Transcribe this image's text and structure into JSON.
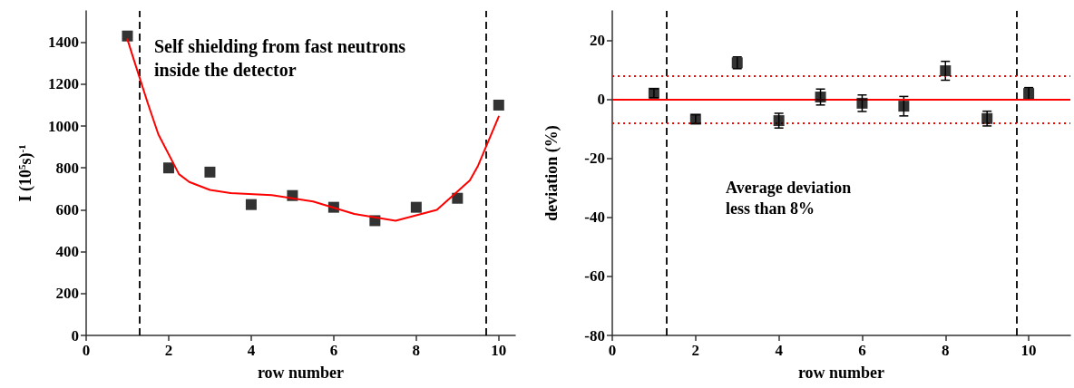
{
  "chart_data": [
    {
      "type": "scatter",
      "xlabel": "row number",
      "ylabel": "I (10$^{5}$s)$^{-1}$",
      "xlim": [
        0,
        10.4
      ],
      "xticks": [
        0,
        2,
        4,
        6,
        8,
        10
      ],
      "ylim": [
        0,
        1550
      ],
      "yticks": [
        0,
        200,
        400,
        600,
        800,
        1000,
        1200,
        1400
      ],
      "x": [
        1,
        2,
        3,
        4,
        5,
        6,
        7,
        8,
        9,
        10
      ],
      "marker": "square",
      "grid": false,
      "series": [
        {
          "color": "#000000",
          "values": [
            1430,
            800,
            780,
            625,
            668,
            612,
            548,
            612,
            655,
            1100
          ]
        },
        {
          "type": "line",
          "color": "#ff0000",
          "marker": "none",
          "line_style": "solid",
          "x": [
            1,
            1.15,
            1.5,
            1.75,
            2.25,
            2.5,
            3,
            3.5,
            4.5,
            5.5,
            6.5,
            7.5,
            8.5,
            9.3,
            9.5,
            10
          ],
          "values": [
            1414,
            1320,
            1105,
            960,
            770,
            733,
            695,
            680,
            670,
            640,
            580,
            548,
            600,
            740,
            811,
            1045
          ]
        }
      ],
      "ref_lines": [
        {
          "axis": "x",
          "value": 1.3,
          "color": "#000000",
          "line_style": "dashed"
        },
        {
          "axis": "x",
          "value": 9.7,
          "color": "#000000",
          "line_style": "dashed"
        }
      ],
      "annotations": [
        "Self shielding from fast neutrons inside the detector"
      ]
    },
    {
      "type": "scatter",
      "xlabel": "row number",
      "ylabel": "deviation (%)",
      "xlim": [
        0,
        11
      ],
      "xticks": [
        0,
        2,
        4,
        6,
        8,
        10
      ],
      "ylim": [
        -80,
        30
      ],
      "yticks": [
        -80,
        -60,
        -40,
        -20,
        0,
        20
      ],
      "x": [
        1,
        2,
        3,
        4,
        5,
        6,
        7,
        8,
        9,
        10
      ],
      "marker": "square",
      "grid": false,
      "series": [
        {
          "color": "#000000",
          "values": [
            2.1,
            -6.7,
            12.4,
            -7.2,
            0.8,
            -1.3,
            -2.3,
            9.7,
            -6.5,
            2
          ],
          "errors": [
            1.5,
            1.5,
            2,
            2.5,
            2.7,
            2.8,
            3.3,
            3.2,
            2.5,
            2
          ]
        }
      ],
      "ref_lines": [
        {
          "axis": "x",
          "value": 1.3,
          "color": "#000000",
          "line_style": "dashed"
        },
        {
          "axis": "x",
          "value": 9.7,
          "color": "#000000",
          "line_style": "dashed"
        },
        {
          "axis": "y",
          "value": 0,
          "color": "#ff0000",
          "line_style": "solid"
        },
        {
          "axis": "y",
          "value": 8,
          "color": "#ff0000",
          "line_style": "dotted"
        },
        {
          "axis": "y",
          "value": -8,
          "color": "#ff0000",
          "line_style": "dotted"
        }
      ],
      "annotations": [
        "Average deviation less than 8%"
      ]
    }
  ]
}
